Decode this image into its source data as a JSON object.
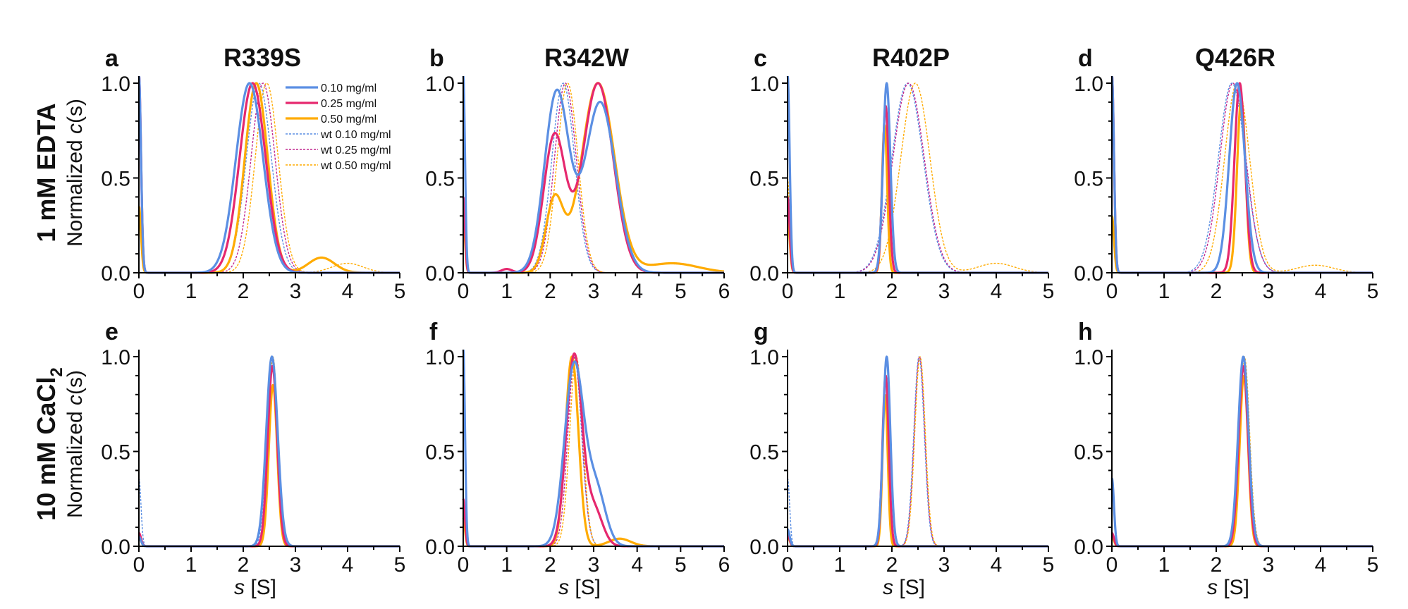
{
  "figure": {
    "rows": [
      {
        "label": "1 mM EDTA",
        "ylabel_prefix": "Normalized ",
        "ylabel_italic": "c",
        "ylabel_suffix": "(s)"
      },
      {
        "label_main": "10 mM CaCl",
        "label_sub": "2",
        "ylabel_prefix": "Normalized ",
        "ylabel_italic": "c",
        "ylabel_suffix": "(s)"
      }
    ],
    "xlabel_italic": "s",
    "xlabel_unit": " [S]"
  },
  "colors": {
    "c010": "#5b8fe3",
    "c025": "#e6286e",
    "c050": "#ffab00",
    "wt010": "#5b8fe3",
    "wt025": "#c2288f",
    "wt050": "#ffab00"
  },
  "legend": [
    {
      "key": "c010",
      "label": "0.10 mg/ml",
      "style": "solid"
    },
    {
      "key": "c025",
      "label": "0.25 mg/ml",
      "style": "solid"
    },
    {
      "key": "c050",
      "label": "0.50 mg/ml",
      "style": "solid"
    },
    {
      "key": "wt010",
      "label": "wt 0.10 mg/ml",
      "style": "dotted"
    },
    {
      "key": "wt025",
      "label": "wt 0.25 mg/ml",
      "style": "dotted"
    },
    {
      "key": "wt050",
      "label": "wt 0.50 mg/ml",
      "style": "dotted"
    }
  ],
  "chart_data": [
    {
      "type": "line",
      "panel": "a",
      "title": "R339S",
      "row": 0,
      "col": 0,
      "xlim": [
        0,
        5
      ],
      "ylim": [
        0,
        1
      ],
      "xticks": [
        0,
        1,
        2,
        3,
        4,
        5
      ],
      "yticks": [
        "0.0",
        "0.5",
        "1.0"
      ],
      "xlabel": "",
      "ylabel": "Normalized c(s)",
      "legend": "top-right",
      "series": [
        {
          "name": "0.10 mg/ml",
          "key": "c010",
          "style": "solid",
          "spike": 1.05,
          "peaks": [
            {
              "mu": 2.12,
              "sd": 0.26,
              "h": 1.0
            }
          ]
        },
        {
          "name": "0.25 mg/ml",
          "key": "c025",
          "style": "solid",
          "spike": 1.05,
          "peaks": [
            {
              "mu": 2.18,
              "sd": 0.25,
              "h": 1.0
            }
          ]
        },
        {
          "name": "0.50 mg/ml",
          "key": "c050",
          "style": "solid",
          "spike": 0.35,
          "peaks": [
            {
              "mu": 2.25,
              "sd": 0.22,
              "h": 1.0
            },
            {
              "mu": 3.5,
              "sd": 0.25,
              "h": 0.08
            }
          ]
        },
        {
          "name": "wt 0.10 mg/ml",
          "key": "wt010",
          "style": "dotted",
          "spike": 1.05,
          "peaks": [
            {
              "mu": 2.3,
              "sd": 0.24,
              "h": 1.0
            }
          ]
        },
        {
          "name": "wt 0.25 mg/ml",
          "key": "wt025",
          "style": "dotted",
          "spike": 0.3,
          "peaks": [
            {
              "mu": 2.38,
              "sd": 0.23,
              "h": 1.0
            }
          ]
        },
        {
          "name": "wt 0.50 mg/ml",
          "key": "wt050",
          "style": "dotted",
          "spike": 0.3,
          "peaks": [
            {
              "mu": 2.45,
              "sd": 0.22,
              "h": 1.0
            },
            {
              "mu": 4.0,
              "sd": 0.3,
              "h": 0.05
            }
          ]
        }
      ]
    },
    {
      "type": "line",
      "panel": "b",
      "title": "R342W",
      "row": 0,
      "col": 1,
      "xlim": [
        0,
        6
      ],
      "ylim": [
        0,
        1
      ],
      "xticks": [
        0,
        1,
        2,
        3,
        4,
        5,
        6
      ],
      "yticks": [
        "0.0",
        "0.5",
        "1.0"
      ],
      "xlabel": "",
      "ylabel": "",
      "series": [
        {
          "name": "0.10 mg/ml",
          "key": "c010",
          "style": "solid",
          "spike": 1.05,
          "peaks": [
            {
              "mu": 2.15,
              "sd": 0.28,
              "h": 0.95
            },
            {
              "mu": 3.15,
              "sd": 0.35,
              "h": 0.9
            }
          ]
        },
        {
          "name": "0.25 mg/ml",
          "key": "c025",
          "style": "solid",
          "spike": 0.4,
          "peaks": [
            {
              "mu": 2.1,
              "sd": 0.25,
              "h": 0.72
            },
            {
              "mu": 3.1,
              "sd": 0.35,
              "h": 1.0
            },
            {
              "mu": 1.0,
              "sd": 0.12,
              "h": 0.02
            }
          ]
        },
        {
          "name": "0.50 mg/ml",
          "key": "c050",
          "style": "solid",
          "spike": 0.3,
          "peaks": [
            {
              "mu": 2.1,
              "sd": 0.2,
              "h": 0.38
            },
            {
              "mu": 3.1,
              "sd": 0.38,
              "h": 1.0
            },
            {
              "mu": 4.8,
              "sd": 0.6,
              "h": 0.05
            }
          ]
        },
        {
          "name": "wt 0.10 mg/ml",
          "key": "wt010",
          "style": "dotted",
          "spike": 1.05,
          "peaks": [
            {
              "mu": 2.3,
              "sd": 0.26,
              "h": 1.0
            }
          ]
        },
        {
          "name": "wt 0.25 mg/ml",
          "key": "wt025",
          "style": "dotted",
          "spike": 0.3,
          "peaks": [
            {
              "mu": 2.35,
              "sd": 0.25,
              "h": 1.0
            }
          ]
        },
        {
          "name": "wt 0.50 mg/ml",
          "key": "wt050",
          "style": "dotted",
          "spike": 0.3,
          "peaks": [
            {
              "mu": 2.4,
              "sd": 0.24,
              "h": 1.0
            }
          ]
        }
      ]
    },
    {
      "type": "line",
      "panel": "c",
      "title": "R402P",
      "row": 0,
      "col": 2,
      "xlim": [
        0,
        5
      ],
      "ylim": [
        0,
        1
      ],
      "xticks": [
        0,
        1,
        2,
        3,
        4,
        5
      ],
      "yticks": [
        "0.0",
        "0.5",
        "1.0"
      ],
      "xlabel": "",
      "ylabel": "",
      "series": [
        {
          "name": "0.10 mg/ml",
          "key": "c010",
          "style": "solid",
          "spike": 1.05,
          "peaks": [
            {
              "mu": 1.9,
              "sd": 0.07,
              "h": 1.0
            }
          ]
        },
        {
          "name": "0.25 mg/ml",
          "key": "c025",
          "style": "solid",
          "spike": 0.4,
          "peaks": [
            {
              "mu": 1.88,
              "sd": 0.06,
              "h": 0.88
            }
          ]
        },
        {
          "name": "0.50 mg/ml",
          "key": "c050",
          "style": "solid",
          "spike": 0.3,
          "peaks": [
            {
              "mu": 1.86,
              "sd": 0.05,
              "h": 0.78
            }
          ]
        },
        {
          "name": "wt 0.10 mg/ml",
          "key": "wt010",
          "style": "dotted",
          "spike": 1.05,
          "peaks": [
            {
              "mu": 2.3,
              "sd": 0.3,
              "h": 1.0
            }
          ]
        },
        {
          "name": "wt 0.25 mg/ml",
          "key": "wt025",
          "style": "dotted",
          "spike": 1.05,
          "peaks": [
            {
              "mu": 2.32,
              "sd": 0.3,
              "h": 1.0
            }
          ]
        },
        {
          "name": "wt 0.50 mg/ml",
          "key": "wt050",
          "style": "dotted",
          "spike": 0.5,
          "peaks": [
            {
              "mu": 2.45,
              "sd": 0.28,
              "h": 1.0
            },
            {
              "mu": 4.0,
              "sd": 0.35,
              "h": 0.05
            }
          ]
        }
      ]
    },
    {
      "type": "line",
      "panel": "d",
      "title": "Q426R",
      "row": 0,
      "col": 3,
      "xlim": [
        0,
        5
      ],
      "ylim": [
        0,
        1
      ],
      "xticks": [
        0,
        1,
        2,
        3,
        4,
        5
      ],
      "yticks": [
        "0.0",
        "0.5",
        "1.0"
      ],
      "xlabel": "",
      "ylabel": "",
      "series": [
        {
          "name": "0.10 mg/ml",
          "key": "c010",
          "style": "solid",
          "spike": 1.05,
          "peaks": [
            {
              "mu": 2.4,
              "sd": 0.15,
              "h": 1.0
            }
          ]
        },
        {
          "name": "0.25 mg/ml",
          "key": "c025",
          "style": "solid",
          "spike": 1.05,
          "peaks": [
            {
              "mu": 2.45,
              "sd": 0.1,
              "h": 1.0
            }
          ]
        },
        {
          "name": "0.50 mg/ml",
          "key": "c050",
          "style": "solid",
          "spike": 0.3,
          "peaks": [
            {
              "mu": 2.48,
              "sd": 0.08,
              "h": 0.92
            }
          ]
        },
        {
          "name": "wt 0.10 mg/ml",
          "key": "wt010",
          "style": "dotted",
          "spike": 1.05,
          "peaks": [
            {
              "mu": 2.3,
              "sd": 0.26,
              "h": 1.0
            }
          ]
        },
        {
          "name": "wt 0.25 mg/ml",
          "key": "wt025",
          "style": "dotted",
          "spike": 1.05,
          "peaks": [
            {
              "mu": 2.32,
              "sd": 0.25,
              "h": 1.0
            }
          ]
        },
        {
          "name": "wt 0.50 mg/ml",
          "key": "wt050",
          "style": "dotted",
          "spike": 0.3,
          "peaks": [
            {
              "mu": 2.4,
              "sd": 0.24,
              "h": 1.0
            },
            {
              "mu": 3.9,
              "sd": 0.35,
              "h": 0.04
            }
          ]
        }
      ]
    },
    {
      "type": "line",
      "panel": "e",
      "title": "",
      "row": 1,
      "col": 0,
      "xlim": [
        0,
        5
      ],
      "ylim": [
        0,
        1
      ],
      "xticks": [
        0,
        1,
        2,
        3,
        4,
        5
      ],
      "yticks": [
        "0.0",
        "0.5",
        "1.0"
      ],
      "xlabel": "s [S]",
      "ylabel": "Normalized c(s)",
      "series": [
        {
          "name": "0.10 mg/ml",
          "key": "c010",
          "style": "solid",
          "spike": 0.05,
          "peaks": [
            {
              "mu": 2.55,
              "sd": 0.11,
              "h": 1.0
            }
          ]
        },
        {
          "name": "0.25 mg/ml",
          "key": "c025",
          "style": "solid",
          "spike": 0.07,
          "peaks": [
            {
              "mu": 2.56,
              "sd": 0.09,
              "h": 0.95
            }
          ]
        },
        {
          "name": "0.50 mg/ml",
          "key": "c050",
          "style": "solid",
          "spike": 0.05,
          "peaks": [
            {
              "mu": 2.57,
              "sd": 0.08,
              "h": 0.85
            }
          ]
        },
        {
          "name": "wt 0.10 mg/ml",
          "key": "wt010",
          "style": "dotted",
          "spike": 0.36,
          "peaks": [
            {
              "mu": 2.55,
              "sd": 0.1,
              "h": 1.0
            }
          ]
        },
        {
          "name": "wt 0.25 mg/ml",
          "key": "wt025",
          "style": "dotted",
          "spike": 0.07,
          "peaks": [
            {
              "mu": 2.56,
              "sd": 0.09,
              "h": 1.0
            }
          ]
        },
        {
          "name": "wt 0.50 mg/ml",
          "key": "wt050",
          "style": "dotted",
          "spike": 0.05,
          "peaks": [
            {
              "mu": 2.57,
              "sd": 0.09,
              "h": 1.0
            }
          ]
        }
      ]
    },
    {
      "type": "line",
      "panel": "f",
      "title": "",
      "row": 1,
      "col": 1,
      "xlim": [
        0,
        6
      ],
      "ylim": [
        0,
        1
      ],
      "xticks": [
        0,
        1,
        2,
        3,
        4,
        5,
        6
      ],
      "yticks": [
        "0.0",
        "0.5",
        "1.0"
      ],
      "xlabel": "s [S]",
      "ylabel": "",
      "series": [
        {
          "name": "0.10 mg/ml",
          "key": "c010",
          "style": "solid",
          "spike": 1.05,
          "peaks": [
            {
              "mu": 2.55,
              "sd": 0.22,
              "h": 0.95
            },
            {
              "mu": 3.05,
              "sd": 0.22,
              "h": 0.3
            }
          ]
        },
        {
          "name": "0.25 mg/ml",
          "key": "c025",
          "style": "solid",
          "spike": 0.25,
          "peaks": [
            {
              "mu": 2.55,
              "sd": 0.18,
              "h": 1.0
            },
            {
              "mu": 3.0,
              "sd": 0.2,
              "h": 0.2
            }
          ]
        },
        {
          "name": "0.50 mg/ml",
          "key": "c050",
          "style": "solid",
          "spike": 0.15,
          "peaks": [
            {
              "mu": 2.5,
              "sd": 0.15,
              "h": 1.0
            },
            {
              "mu": 3.6,
              "sd": 0.25,
              "h": 0.04
            }
          ]
        },
        {
          "name": "wt 0.10 mg/ml",
          "key": "wt010",
          "style": "dotted",
          "spike": 1.05,
          "peaks": [
            {
              "mu": 2.55,
              "sd": 0.17,
              "h": 1.0
            }
          ]
        },
        {
          "name": "wt 0.25 mg/ml",
          "key": "wt025",
          "style": "dotted",
          "spike": 0.25,
          "peaks": [
            {
              "mu": 2.57,
              "sd": 0.16,
              "h": 1.0
            }
          ]
        },
        {
          "name": "wt 0.50 mg/ml",
          "key": "wt050",
          "style": "dotted",
          "spike": 0.2,
          "peaks": [
            {
              "mu": 2.6,
              "sd": 0.15,
              "h": 1.0
            }
          ]
        }
      ]
    },
    {
      "type": "line",
      "panel": "g",
      "title": "",
      "row": 1,
      "col": 2,
      "xlim": [
        0,
        5
      ],
      "ylim": [
        0,
        1
      ],
      "xticks": [
        0,
        1,
        2,
        3,
        4,
        5
      ],
      "yticks": [
        "0.0",
        "0.5",
        "1.0"
      ],
      "xlabel": "s [S]",
      "ylabel": "",
      "series": [
        {
          "name": "0.10 mg/ml",
          "key": "c010",
          "style": "solid",
          "spike": 0.09,
          "peaks": [
            {
              "mu": 1.9,
              "sd": 0.07,
              "h": 1.0
            }
          ]
        },
        {
          "name": "0.25 mg/ml",
          "key": "c025",
          "style": "solid",
          "spike": 0.06,
          "peaks": [
            {
              "mu": 1.88,
              "sd": 0.06,
              "h": 0.9
            }
          ]
        },
        {
          "name": "0.50 mg/ml",
          "key": "c050",
          "style": "solid",
          "spike": 0.05,
          "peaks": [
            {
              "mu": 1.87,
              "sd": 0.05,
              "h": 0.8
            }
          ]
        },
        {
          "name": "wt 0.10 mg/ml",
          "key": "wt010",
          "style": "dotted",
          "spike": 0.36,
          "peaks": [
            {
              "mu": 2.52,
              "sd": 0.1,
              "h": 1.0
            }
          ]
        },
        {
          "name": "wt 0.25 mg/ml",
          "key": "wt025",
          "style": "dotted",
          "spike": 0.08,
          "peaks": [
            {
              "mu": 2.53,
              "sd": 0.1,
              "h": 1.0
            }
          ]
        },
        {
          "name": "wt 0.50 mg/ml",
          "key": "wt050",
          "style": "dotted",
          "spike": 0.05,
          "peaks": [
            {
              "mu": 2.54,
              "sd": 0.1,
              "h": 1.0
            }
          ]
        }
      ]
    },
    {
      "type": "line",
      "panel": "h",
      "title": "",
      "row": 1,
      "col": 3,
      "xlim": [
        0,
        5
      ],
      "ylim": [
        0,
        1
      ],
      "xticks": [
        0,
        1,
        2,
        3,
        4,
        5
      ],
      "yticks": [
        "0.0",
        "0.5",
        "1.0"
      ],
      "xlabel": "s [S]",
      "ylabel": "",
      "series": [
        {
          "name": "0.10 mg/ml",
          "key": "c010",
          "style": "solid",
          "spike": 0.36,
          "peaks": [
            {
              "mu": 2.52,
              "sd": 0.1,
              "h": 1.0
            }
          ]
        },
        {
          "name": "0.25 mg/ml",
          "key": "c025",
          "style": "solid",
          "spike": 0.07,
          "peaks": [
            {
              "mu": 2.52,
              "sd": 0.09,
              "h": 0.95
            }
          ]
        },
        {
          "name": "0.50 mg/ml",
          "key": "c050",
          "style": "solid",
          "spike": 0.05,
          "peaks": [
            {
              "mu": 2.53,
              "sd": 0.08,
              "h": 0.9
            }
          ]
        },
        {
          "name": "wt 0.10 mg/ml",
          "key": "wt010",
          "style": "dotted",
          "spike": 0.3,
          "peaks": [
            {
              "mu": 2.52,
              "sd": 0.1,
              "h": 1.0
            }
          ]
        },
        {
          "name": "wt 0.25 mg/ml",
          "key": "wt025",
          "style": "dotted",
          "spike": 0.07,
          "peaks": [
            {
              "mu": 2.53,
              "sd": 0.1,
              "h": 1.0
            }
          ]
        },
        {
          "name": "wt 0.50 mg/ml",
          "key": "wt050",
          "style": "dotted",
          "spike": 0.05,
          "peaks": [
            {
              "mu": 2.54,
              "sd": 0.1,
              "h": 1.0
            }
          ]
        }
      ]
    }
  ]
}
